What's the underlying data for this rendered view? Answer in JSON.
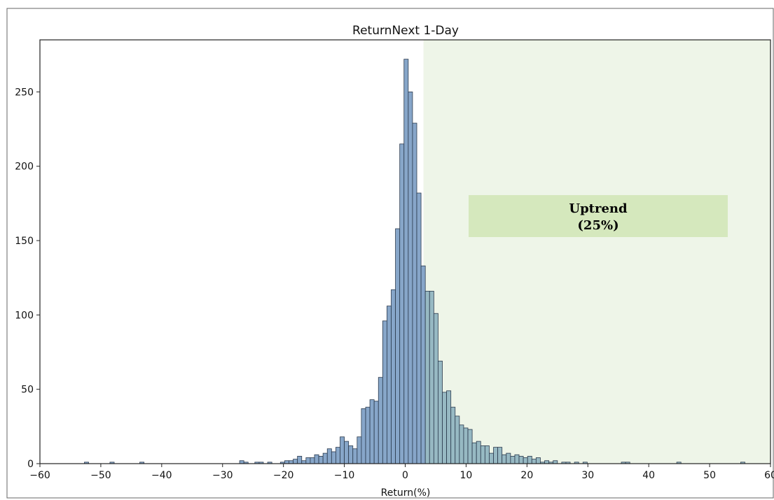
{
  "chart_data": {
    "type": "bar",
    "title": "ReturnNext 1-Day",
    "xlabel": "Return(%)",
    "ylabel": "",
    "xlim": [
      -60,
      60
    ],
    "ylim": [
      0,
      285
    ],
    "xticks": [
      -60,
      -50,
      -40,
      -30,
      -20,
      -10,
      0,
      10,
      20,
      30,
      40,
      50,
      60
    ],
    "xtick_labels": [
      "−60",
      "−50",
      "−40",
      "−30",
      "−20",
      "−10",
      "0",
      "10",
      "20",
      "30",
      "40",
      "50",
      "60"
    ],
    "yticks": [
      0,
      50,
      100,
      150,
      200,
      250
    ],
    "bin_width": 0.7,
    "grid": false,
    "shaded_region": {
      "from": 3,
      "to": 60,
      "color": "#eef5e8"
    },
    "annotation": {
      "lines": [
        "Uptrend",
        "(25%)"
      ],
      "x": 32,
      "y": 167,
      "background": "#d5e8bd"
    },
    "colors": {
      "bar_down": "#87a6c9",
      "bar_up": "#97b9c3",
      "edge": "#2b3a4d"
    },
    "bins": [
      [
        -52.7,
        1
      ],
      [
        -48.5,
        1
      ],
      [
        -43.6,
        1
      ],
      [
        -27.2,
        2
      ],
      [
        -26.5,
        1
      ],
      [
        -24.7,
        1
      ],
      [
        -24.0,
        1
      ],
      [
        -22.6,
        1
      ],
      [
        -20.5,
        1
      ],
      [
        -19.8,
        2
      ],
      [
        -19.1,
        2
      ],
      [
        -18.4,
        3
      ],
      [
        -17.7,
        5
      ],
      [
        -17.0,
        2
      ],
      [
        -16.3,
        4
      ],
      [
        -15.6,
        4
      ],
      [
        -14.9,
        6
      ],
      [
        -14.2,
        5
      ],
      [
        -13.5,
        7
      ],
      [
        -12.8,
        10
      ],
      [
        -12.1,
        8
      ],
      [
        -11.4,
        11
      ],
      [
        -10.7,
        18
      ],
      [
        -10.0,
        15
      ],
      [
        -9.3,
        12
      ],
      [
        -8.6,
        10
      ],
      [
        -7.9,
        18
      ],
      [
        -7.2,
        37
      ],
      [
        -6.5,
        38
      ],
      [
        -5.8,
        43
      ],
      [
        -5.1,
        42
      ],
      [
        -4.4,
        58
      ],
      [
        -3.7,
        96
      ],
      [
        -3.0,
        106
      ],
      [
        -2.3,
        117
      ],
      [
        -1.6,
        158
      ],
      [
        -0.9,
        215
      ],
      [
        -0.2,
        272
      ],
      [
        0.5,
        250
      ],
      [
        1.2,
        229
      ],
      [
        1.9,
        182
      ],
      [
        2.6,
        133
      ],
      [
        3.3,
        116
      ],
      [
        4.0,
        116
      ],
      [
        4.7,
        101
      ],
      [
        5.4,
        69
      ],
      [
        6.1,
        48
      ],
      [
        6.8,
        49
      ],
      [
        7.5,
        38
      ],
      [
        8.2,
        32
      ],
      [
        8.9,
        26
      ],
      [
        9.6,
        24
      ],
      [
        10.3,
        23
      ],
      [
        11.0,
        14
      ],
      [
        11.7,
        15
      ],
      [
        12.4,
        12
      ],
      [
        13.1,
        12
      ],
      [
        13.8,
        7
      ],
      [
        14.5,
        11
      ],
      [
        15.2,
        11
      ],
      [
        15.9,
        6
      ],
      [
        16.6,
        7
      ],
      [
        17.3,
        5
      ],
      [
        18.0,
        6
      ],
      [
        18.7,
        5
      ],
      [
        19.4,
        4
      ],
      [
        20.1,
        5
      ],
      [
        20.8,
        3
      ],
      [
        21.5,
        4
      ],
      [
        22.2,
        1
      ],
      [
        22.9,
        2
      ],
      [
        23.6,
        1
      ],
      [
        24.3,
        2
      ],
      [
        25.7,
        1
      ],
      [
        26.4,
        1
      ],
      [
        27.8,
        1
      ],
      [
        29.2,
        1
      ],
      [
        35.5,
        1
      ],
      [
        36.2,
        1
      ],
      [
        44.6,
        1
      ],
      [
        55.1,
        1
      ]
    ]
  }
}
